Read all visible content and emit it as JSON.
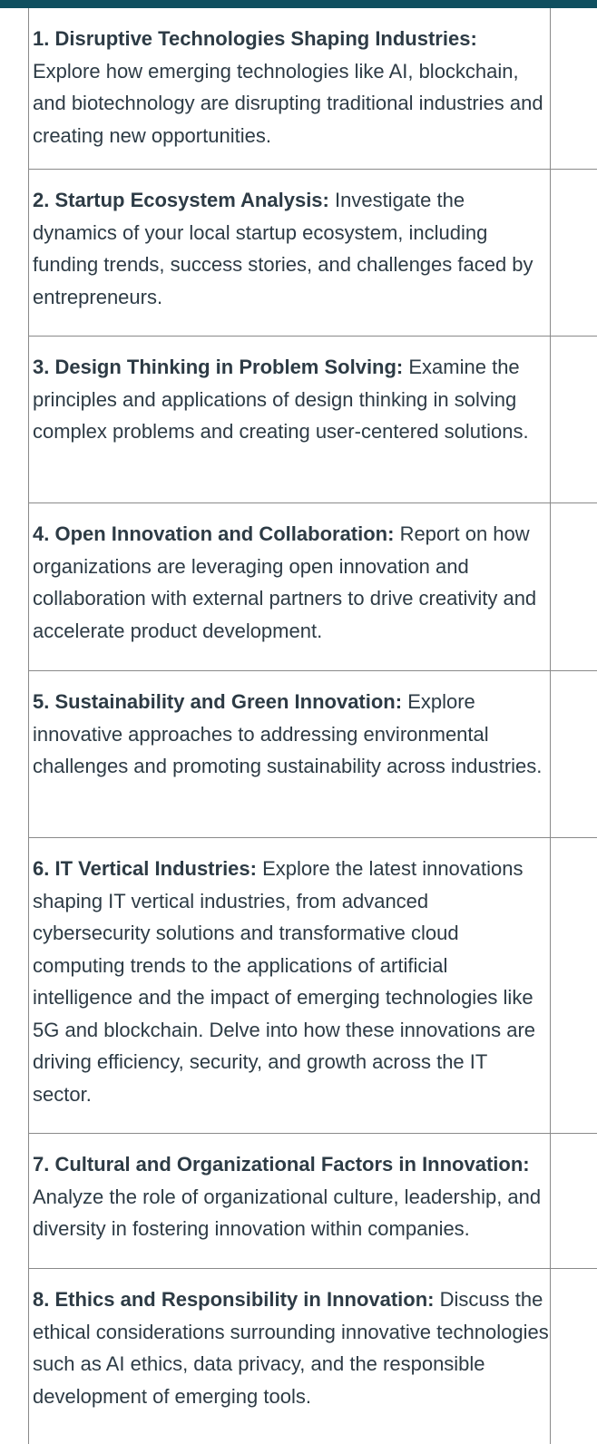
{
  "items": [
    {
      "title": "1. Disruptive Technologies Shaping Industries:",
      "text": "Explore how emerging technologies like AI, blockchain, and biotechnology are disrupting traditional industries and creating new opportunities."
    },
    {
      "title": "2. Startup Ecosystem Analysis:",
      "text": "Investigate the dynamics of your local startup ecosystem, including funding trends, success stories, and challenges faced by entrepreneurs."
    },
    {
      "title": "3. Design Thinking in Problem Solving:",
      "text": "Examine the principles and applications of design thinking in solving complex problems and creating user-centered solutions."
    },
    {
      "title": "4. Open Innovation and Collaboration:",
      "text": "Report on how organizations are leveraging open innovation and collaboration with external partners to drive creativity and accelerate product development."
    },
    {
      "title": "5. Sustainability and Green Innovation:",
      "text": "Explore innovative approaches to addressing environmental challenges and promoting sustainability across industries."
    },
    {
      "title": "6. IT Vertical Industries:",
      "text": "Explore the latest innovations shaping IT vertical industries, from advanced cybersecurity solutions and transformative cloud computing trends to the applications of artificial intelligence and the impact of emerging technologies like 5G and blockchain. Delve into how these innovations are driving efficiency, security, and growth across the IT sector."
    },
    {
      "title": "7. Cultural and Organizational Factors in Innovation:",
      "text": "Analyze the role of organizational culture, leadership, and diversity in fostering innovation within companies."
    },
    {
      "title": "8. Ethics and Responsibility in Innovation:",
      "text": "Discuss the ethical considerations surrounding innovative technologies such as AI ethics, data privacy, and the responsible development of emerging tools."
    }
  ]
}
